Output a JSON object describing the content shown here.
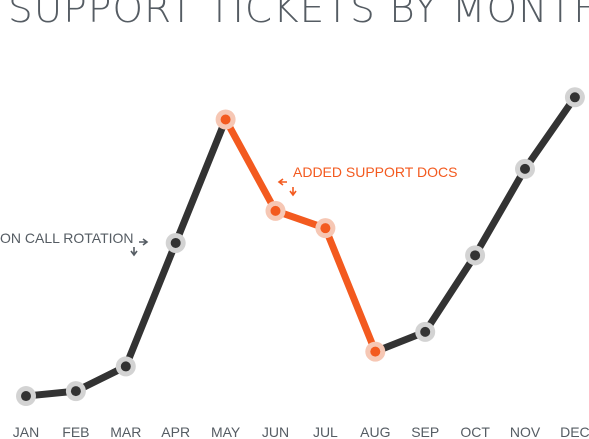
{
  "chart_data": {
    "type": "line",
    "title": "SUPPORT TICKETS BY MONTH",
    "categories": [
      "JAN",
      "FEB",
      "MAR",
      "APR",
      "MAY",
      "JUN",
      "JUL",
      "AUG",
      "SEP",
      "OCT",
      "NOV",
      "DEC"
    ],
    "values": [
      2,
      4,
      14,
      64,
      114,
      77,
      70,
      20,
      28,
      59,
      94,
      123
    ],
    "ylim": [
      0,
      130
    ],
    "grid": false,
    "highlight_range": [
      "MAY",
      "AUG"
    ],
    "colors": {
      "line": "#333333",
      "highlight": "#f35a1f",
      "marker_halo": "#d3d3d3",
      "highlight_halo": "#f6c7b4",
      "text": "#555c63"
    },
    "annotations": [
      {
        "text": "ON CALL ROTATION",
        "near": "APR",
        "color": "#555c63"
      },
      {
        "text": "ADDED SUPPORT DOCS",
        "near": "JUN",
        "color": "#f35a1f"
      }
    ]
  }
}
